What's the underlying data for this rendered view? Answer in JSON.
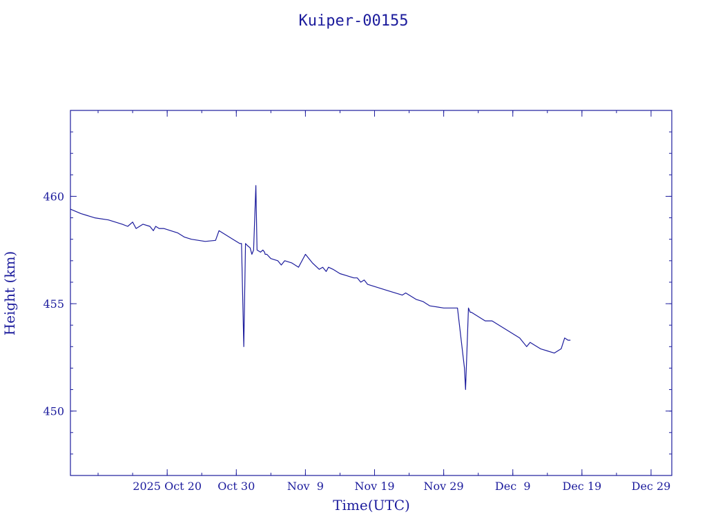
{
  "chart_data": {
    "type": "line",
    "title": "Kuiper-00155",
    "xlabel": "Time(UTC)",
    "ylabel": "Height (km)",
    "colors": {
      "line": "#1b1b9c",
      "text": "#1b1b9c",
      "background": "#ffffff"
    },
    "xlim": [
      "2025-10-06",
      "2026-01-01"
    ],
    "ylim": [
      447,
      464
    ],
    "grid": false,
    "x_ticks": [
      {
        "date": "2025-10-20",
        "label": "2025 Oct 20"
      },
      {
        "date": "2025-10-30",
        "label": "Oct 30"
      },
      {
        "date": "2025-11-09",
        "label": "Nov  9"
      },
      {
        "date": "2025-11-19",
        "label": "Nov 19"
      },
      {
        "date": "2025-11-29",
        "label": "Nov 29"
      },
      {
        "date": "2025-12-09",
        "label": "Dec  9"
      },
      {
        "date": "2025-12-19",
        "label": "Dec 19"
      },
      {
        "date": "2025-12-29",
        "label": "Dec 29"
      }
    ],
    "y_ticks": [
      450,
      455,
      460
    ],
    "series": [
      {
        "x": [
          "2025-10-06T00:00",
          "2025-10-07T12:00",
          "2025-10-09T12:00",
          "2025-10-11T12:00",
          "2025-10-13T12:00",
          "2025-10-14T07:00",
          "2025-10-15T00:00",
          "2025-10-15T12:00",
          "2025-10-16T12:00",
          "2025-10-17T12:00",
          "2025-10-18T00:00",
          "2025-10-18T08:00",
          "2025-10-18T20:00",
          "2025-10-19T12:00",
          "2025-10-21T12:00",
          "2025-10-22T00:00",
          "2025-10-22T12:00",
          "2025-10-23T12:00",
          "2025-10-25T12:00",
          "2025-10-27T00:00",
          "2025-10-27T12:00",
          "2025-10-29T12:00",
          "2025-10-30T12:00",
          "2025-10-30T18:00",
          "2025-10-31T02:00",
          "2025-10-31T08:00",
          "2025-10-31T15:00",
          "2025-11-01T00:00",
          "2025-11-01T06:00",
          "2025-11-01T12:00",
          "2025-11-01T20:00",
          "2025-11-02T00:00",
          "2025-11-02T12:00",
          "2025-11-02T20:00",
          "2025-11-03T02:00",
          "2025-11-03T04:00",
          "2025-11-03T10:00",
          "2025-11-04T00:00",
          "2025-11-05T00:00",
          "2025-11-05T12:00",
          "2025-11-06T00:00",
          "2025-11-07T00:00",
          "2025-11-08T00:00",
          "2025-11-09T00:00",
          "2025-11-10T00:00",
          "2025-11-11T00:00",
          "2025-11-11T12:00",
          "2025-11-12T00:00",
          "2025-11-12T08:00",
          "2025-11-13T00:00",
          "2025-11-14T00:00",
          "2025-11-15T00:00",
          "2025-11-16T00:00",
          "2025-11-16T12:00",
          "2025-11-17T00:00",
          "2025-11-17T12:00",
          "2025-11-18T00:00",
          "2025-11-19T00:00",
          "2025-11-21T00:00",
          "2025-11-23T00:00",
          "2025-11-23T12:00",
          "2025-11-25T00:00",
          "2025-11-26T00:00",
          "2025-11-26T12:00",
          "2025-11-27T00:00",
          "2025-11-29T00:00",
          "2025-12-01T00:00",
          "2025-12-02T00:00",
          "2025-12-02T04:00",
          "2025-12-02T14:00",
          "2025-12-02T20:00",
          "2025-12-03T00:00",
          "2025-12-04T00:00",
          "2025-12-05T00:00",
          "2025-12-06T00:00",
          "2025-12-08T00:00",
          "2025-12-10T00:00",
          "2025-12-11T00:00",
          "2025-12-11T12:00",
          "2025-12-12T00:00",
          "2025-12-13T00:00",
          "2025-12-14T00:00",
          "2025-12-15T00:00",
          "2025-12-16T00:00",
          "2025-12-16T12:00",
          "2025-12-17T00:00",
          "2025-12-17T08:00"
        ],
        "y": [
          459.4,
          459.2,
          459.0,
          458.9,
          458.7,
          458.6,
          458.8,
          458.5,
          458.7,
          458.6,
          458.4,
          458.6,
          458.5,
          458.5,
          458.3,
          458.2,
          458.1,
          458.0,
          457.9,
          457.95,
          458.4,
          458.0,
          457.8,
          457.8,
          453.0,
          457.8,
          457.7,
          457.6,
          457.3,
          457.5,
          460.5,
          457.5,
          457.4,
          457.5,
          457.4,
          457.3,
          457.3,
          457.1,
          457.0,
          456.8,
          457.0,
          456.9,
          456.7,
          457.3,
          456.9,
          456.6,
          456.7,
          456.5,
          456.7,
          456.6,
          456.4,
          456.3,
          456.2,
          456.2,
          456.0,
          456.1,
          455.9,
          455.8,
          455.6,
          455.4,
          455.5,
          455.2,
          455.1,
          455.0,
          454.9,
          454.8,
          454.8,
          452.0,
          451.0,
          454.8,
          454.6,
          454.6,
          454.4,
          454.2,
          454.2,
          453.8,
          453.4,
          453.0,
          453.2,
          453.1,
          452.9,
          452.8,
          452.7,
          452.9,
          453.4,
          453.3,
          453.3
        ]
      }
    ]
  }
}
